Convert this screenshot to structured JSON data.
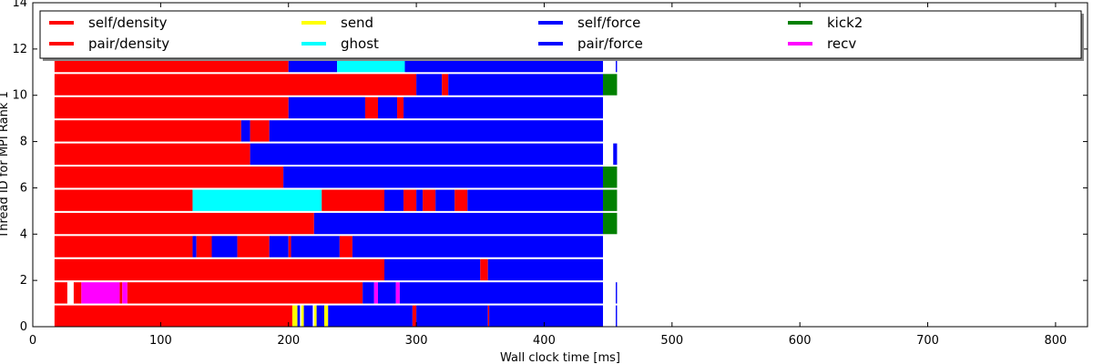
{
  "chart_data": {
    "type": "bar",
    "title": "",
    "xlabel": "Wall clock time [ms]",
    "ylabel": "Thread ID for MPI Rank 1",
    "xlim": [
      0,
      825
    ],
    "ylim": [
      0,
      14
    ],
    "xticks": [
      0,
      100,
      200,
      300,
      400,
      500,
      600,
      700,
      800
    ],
    "yticks": [
      0,
      2,
      4,
      6,
      8,
      10,
      12,
      14
    ],
    "grid": false,
    "legend_position": "top",
    "legend": [
      {
        "name": "self/density",
        "color": "#ff0000"
      },
      {
        "name": "pair/density",
        "color": "#ff0000"
      },
      {
        "name": "send",
        "color": "#ffff00"
      },
      {
        "name": "ghost",
        "color": "#00ffff"
      },
      {
        "name": "self/force",
        "color": "#0000ff"
      },
      {
        "name": "pair/force",
        "color": "#0000ff"
      },
      {
        "name": "kick2",
        "color": "#008000"
      },
      {
        "name": "recv",
        "color": "#ff00ff"
      }
    ],
    "colors": {
      "density": "#ff0000",
      "send": "#ffff00",
      "ghost": "#00ffff",
      "force": "#0000ff",
      "kick2": "#008000",
      "recv": "#ff00ff"
    },
    "threads": [
      {
        "thread": 0,
        "segments": [
          {
            "task": "density",
            "start": 17,
            "end": 203
          },
          {
            "task": "send",
            "start": 203,
            "end": 207
          },
          {
            "task": "force",
            "start": 207,
            "end": 209
          },
          {
            "task": "send",
            "start": 210,
            "end": 212
          },
          {
            "task": "force",
            "start": 212,
            "end": 219
          },
          {
            "task": "send",
            "start": 220,
            "end": 222
          },
          {
            "task": "force",
            "start": 222,
            "end": 228
          },
          {
            "task": "send",
            "start": 228,
            "end": 231
          },
          {
            "task": "force",
            "start": 231,
            "end": 297
          },
          {
            "task": "density",
            "start": 297,
            "end": 300
          },
          {
            "task": "force",
            "start": 300,
            "end": 356
          },
          {
            "task": "density",
            "start": 356,
            "end": 357
          },
          {
            "task": "force",
            "start": 357,
            "end": 446
          },
          {
            "task": "force",
            "start": 456,
            "end": 457
          }
        ]
      },
      {
        "thread": 1,
        "segments": [
          {
            "task": "density",
            "start": 17,
            "end": 27
          },
          {
            "task": "density",
            "start": 32,
            "end": 38
          },
          {
            "task": "recv",
            "start": 38,
            "end": 68
          },
          {
            "task": "density",
            "start": 68,
            "end": 70
          },
          {
            "task": "recv",
            "start": 70,
            "end": 74
          },
          {
            "task": "density",
            "start": 74,
            "end": 258
          },
          {
            "task": "force",
            "start": 258,
            "end": 267
          },
          {
            "task": "recv",
            "start": 267,
            "end": 270
          },
          {
            "task": "force",
            "start": 270,
            "end": 284
          },
          {
            "task": "recv",
            "start": 284,
            "end": 287
          },
          {
            "task": "force",
            "start": 287,
            "end": 446
          },
          {
            "task": "force",
            "start": 456,
            "end": 457
          }
        ]
      },
      {
        "thread": 2,
        "segments": [
          {
            "task": "density",
            "start": 17,
            "end": 275
          },
          {
            "task": "force",
            "start": 275,
            "end": 350
          },
          {
            "task": "density",
            "start": 350,
            "end": 356
          },
          {
            "task": "force",
            "start": 356,
            "end": 446
          }
        ]
      },
      {
        "thread": 3,
        "segments": [
          {
            "task": "density",
            "start": 17,
            "end": 125
          },
          {
            "task": "force",
            "start": 125,
            "end": 128
          },
          {
            "task": "density",
            "start": 128,
            "end": 140
          },
          {
            "task": "force",
            "start": 140,
            "end": 160
          },
          {
            "task": "density",
            "start": 160,
            "end": 185
          },
          {
            "task": "force",
            "start": 185,
            "end": 200
          },
          {
            "task": "density",
            "start": 200,
            "end": 202
          },
          {
            "task": "force",
            "start": 202,
            "end": 240
          },
          {
            "task": "density",
            "start": 240,
            "end": 250
          },
          {
            "task": "force",
            "start": 250,
            "end": 446
          }
        ]
      },
      {
        "thread": 4,
        "segments": [
          {
            "task": "density",
            "start": 17,
            "end": 220
          },
          {
            "task": "force",
            "start": 220,
            "end": 446
          },
          {
            "task": "kick2",
            "start": 446,
            "end": 457
          }
        ]
      },
      {
        "thread": 5,
        "segments": [
          {
            "task": "density",
            "start": 17,
            "end": 125
          },
          {
            "task": "ghost",
            "start": 125,
            "end": 226
          },
          {
            "task": "density",
            "start": 226,
            "end": 275
          },
          {
            "task": "force",
            "start": 275,
            "end": 290
          },
          {
            "task": "density",
            "start": 290,
            "end": 300
          },
          {
            "task": "force",
            "start": 300,
            "end": 305
          },
          {
            "task": "density",
            "start": 305,
            "end": 315
          },
          {
            "task": "force",
            "start": 315,
            "end": 330
          },
          {
            "task": "density",
            "start": 330,
            "end": 340
          },
          {
            "task": "force",
            "start": 340,
            "end": 446
          },
          {
            "task": "kick2",
            "start": 446,
            "end": 457
          }
        ]
      },
      {
        "thread": 6,
        "segments": [
          {
            "task": "density",
            "start": 17,
            "end": 196
          },
          {
            "task": "force",
            "start": 196,
            "end": 446
          },
          {
            "task": "kick2",
            "start": 446,
            "end": 457
          }
        ]
      },
      {
        "thread": 7,
        "segments": [
          {
            "task": "density",
            "start": 17,
            "end": 170
          },
          {
            "task": "force",
            "start": 170,
            "end": 446
          },
          {
            "task": "force",
            "start": 454,
            "end": 457
          }
        ]
      },
      {
        "thread": 8,
        "segments": [
          {
            "task": "density",
            "start": 17,
            "end": 163
          },
          {
            "task": "force",
            "start": 163,
            "end": 170
          },
          {
            "task": "density",
            "start": 170,
            "end": 185
          },
          {
            "task": "force",
            "start": 185,
            "end": 446
          }
        ]
      },
      {
        "thread": 9,
        "segments": [
          {
            "task": "density",
            "start": 17,
            "end": 200
          },
          {
            "task": "force",
            "start": 200,
            "end": 260
          },
          {
            "task": "density",
            "start": 260,
            "end": 270
          },
          {
            "task": "force",
            "start": 270,
            "end": 285
          },
          {
            "task": "density",
            "start": 285,
            "end": 290
          },
          {
            "task": "force",
            "start": 290,
            "end": 446
          }
        ]
      },
      {
        "thread": 10,
        "segments": [
          {
            "task": "density",
            "start": 17,
            "end": 300
          },
          {
            "task": "force",
            "start": 300,
            "end": 320
          },
          {
            "task": "density",
            "start": 320,
            "end": 325
          },
          {
            "task": "force",
            "start": 325,
            "end": 446
          },
          {
            "task": "kick2",
            "start": 446,
            "end": 457
          }
        ]
      },
      {
        "thread": 11,
        "segments": [
          {
            "task": "density",
            "start": 17,
            "end": 200
          },
          {
            "task": "force",
            "start": 200,
            "end": 238
          },
          {
            "task": "ghost",
            "start": 238,
            "end": 291
          },
          {
            "task": "force",
            "start": 291,
            "end": 446
          },
          {
            "task": "force",
            "start": 456,
            "end": 457
          }
        ]
      }
    ]
  }
}
